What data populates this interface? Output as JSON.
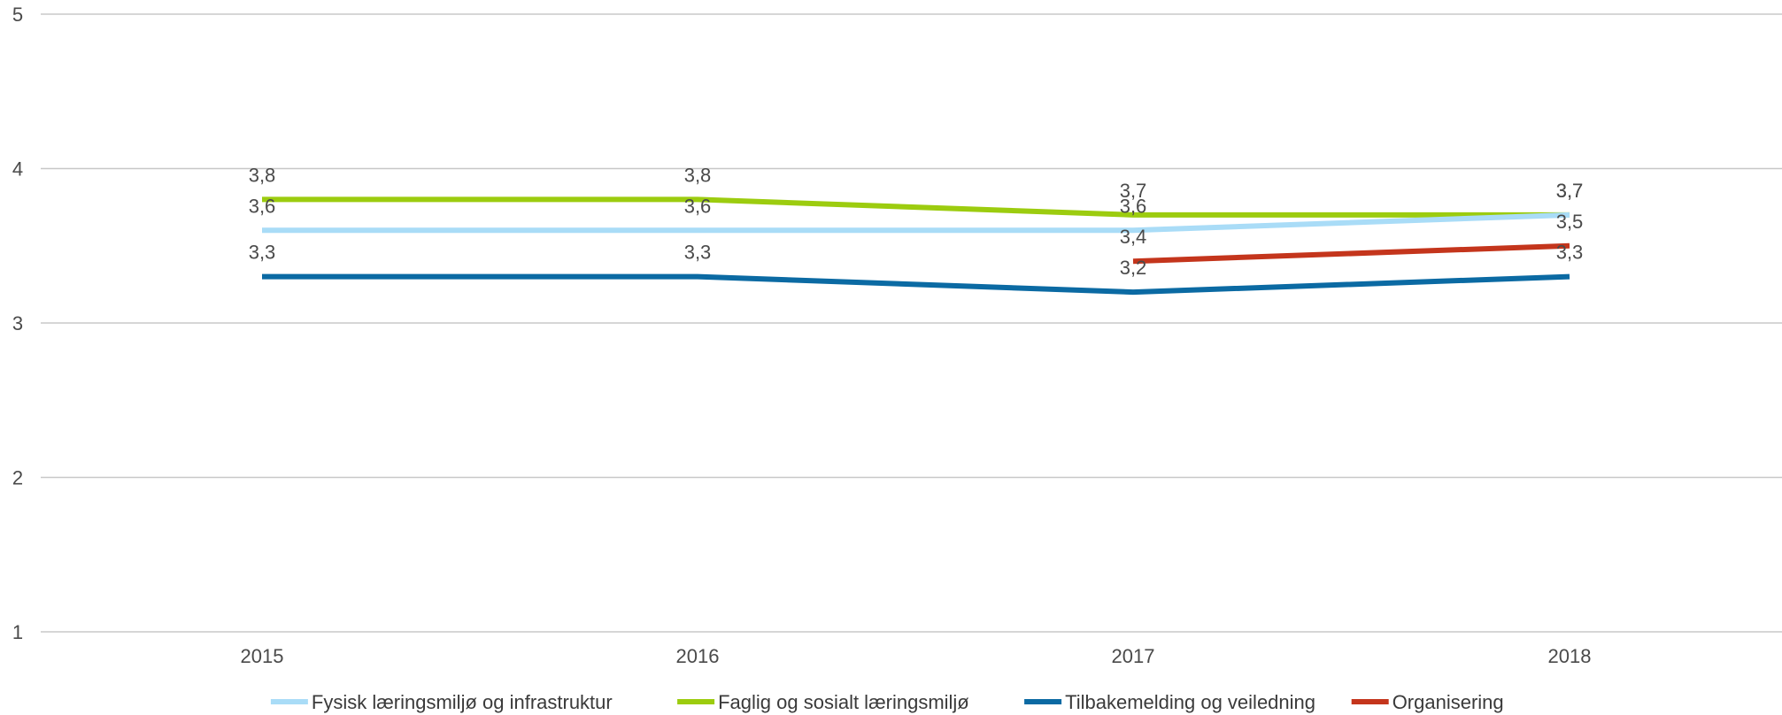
{
  "chart_data": {
    "type": "line",
    "title": "",
    "xlabel": "",
    "ylabel": "",
    "x": [
      "2015",
      "2016",
      "2017",
      "2018"
    ],
    "ylim": [
      1,
      5
    ],
    "yticks": [
      "1",
      "2",
      "3",
      "4",
      "5"
    ],
    "grid": true,
    "legend_position": "bottom",
    "series": [
      {
        "name": "Fysisk læringsmiljø og infrastruktur",
        "color": "#a9dcf7",
        "values": [
          3.6,
          3.6,
          3.6,
          3.7
        ],
        "labels": [
          "3,6",
          "3,6",
          "3,6",
          "3,7"
        ]
      },
      {
        "name": "Faglig og sosialt læringsmiljø",
        "color": "#9ccc0f",
        "values": [
          3.8,
          3.8,
          3.7,
          3.7
        ],
        "labels": [
          "3,8",
          "3,8",
          "3,7",
          "3,7"
        ]
      },
      {
        "name": "Tilbakemelding og veiledning",
        "color": "#0b6aa3",
        "values": [
          3.3,
          3.3,
          3.2,
          3.3
        ],
        "labels": [
          "3,3",
          "3,3",
          "3,2",
          "3,3"
        ]
      },
      {
        "name": "Organisering",
        "color": "#c4351c",
        "values": [
          null,
          null,
          3.4,
          3.5
        ],
        "labels": [
          null,
          null,
          "3,4",
          "3,5"
        ]
      }
    ]
  }
}
